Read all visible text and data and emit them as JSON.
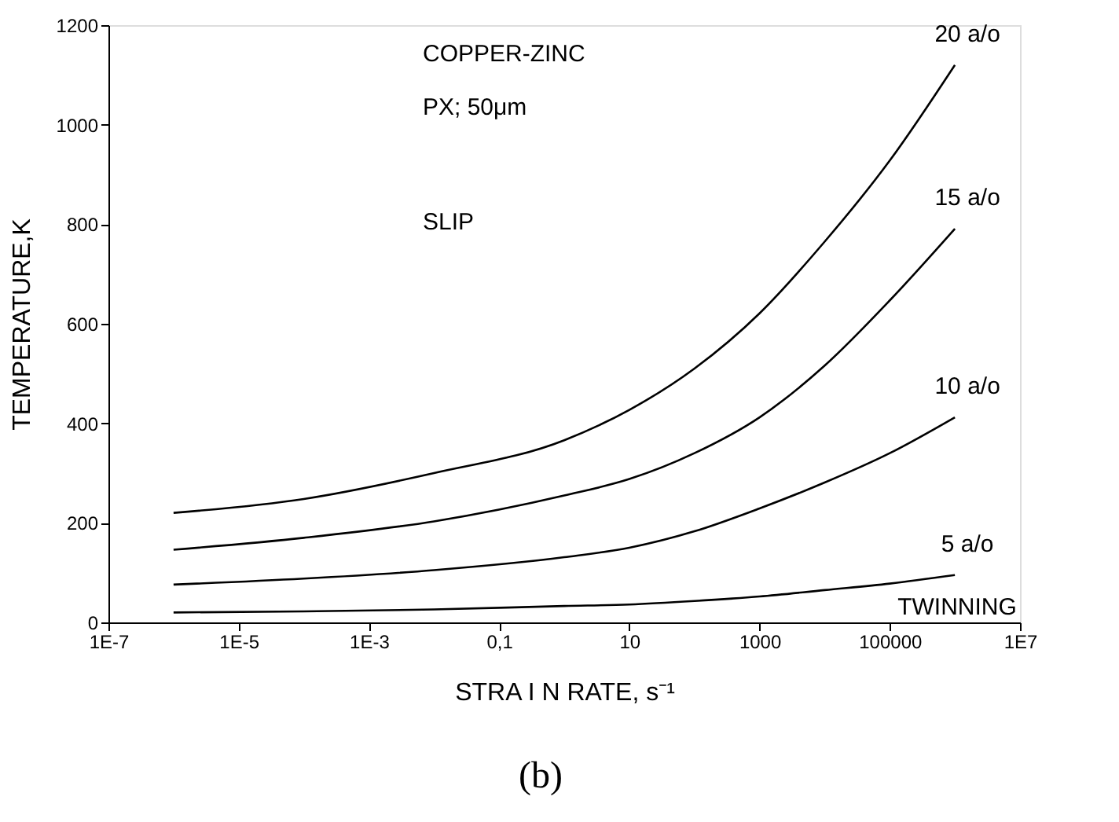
{
  "chart_data": {
    "type": "line",
    "xlabel": "STRA I N RATE, s⁻¹",
    "ylabel": "TEMPERATURE,K",
    "log": "x",
    "xlim": [
      1e-07,
      10000000.0
    ],
    "xticks": [
      {
        "value": 1e-07,
        "label": "1E-7"
      },
      {
        "value": 1e-05,
        "label": "1E-5"
      },
      {
        "value": 0.001,
        "label": "1E-3"
      },
      {
        "value": 0.1,
        "label": "0,1"
      },
      10,
      1000,
      100000,
      {
        "value": 10000000.0,
        "label": "1E7"
      }
    ],
    "ylim": [
      0,
      1200
    ],
    "yticks": [
      0,
      200,
      400,
      600,
      800,
      1000,
      1200
    ],
    "grid": false,
    "marker": "none",
    "line_style": "solid",
    "x": [
      1e-06,
      0.0001,
      0.01,
      1,
      10,
      100,
      1000,
      10000.0,
      100000.0,
      1000000.0
    ],
    "series": [
      {
        "name": "20 a/o",
        "color": "#000000",
        "values": [
          220,
          248,
          300,
          366,
          427,
          510,
          621,
          765,
          928,
          1120
        ]
      },
      {
        "name": "15 a/o",
        "color": "#000000",
        "values": [
          146,
          170,
          203,
          255,
          288,
          340,
          412,
          516,
          647,
          791
        ]
      },
      {
        "name": "10 a/o",
        "color": "#000000",
        "values": [
          76,
          88,
          105,
          131,
          150,
          183,
          229,
          281,
          340,
          412
        ]
      },
      {
        "name": "5 a/o",
        "color": "#000000",
        "values": [
          20,
          22,
          26,
          33,
          36,
          43,
          52,
          65,
          78,
          95
        ]
      }
    ],
    "annotations": [
      "COPPER-ZINC",
      "PX; 50μm",
      "SLIP",
      "TWINNING",
      "(b)"
    ]
  }
}
